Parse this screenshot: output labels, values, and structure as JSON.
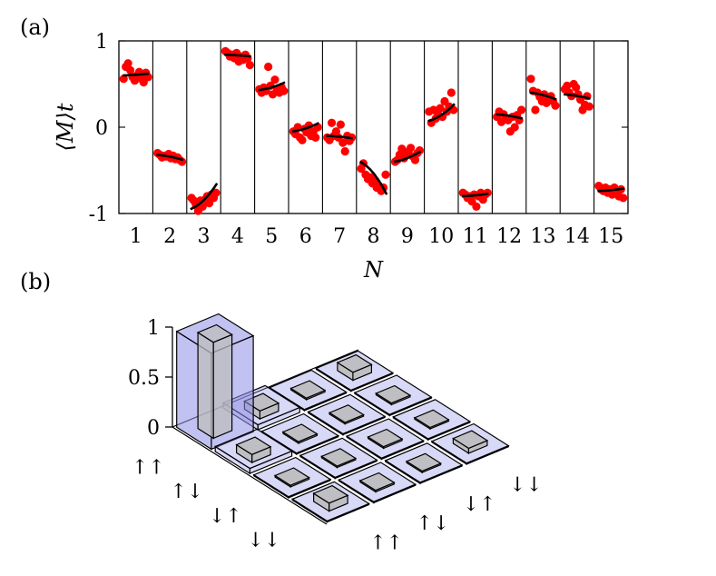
{
  "panel_a_label": "(a)",
  "panel_b_label": "(b)",
  "chart_data": [
    {
      "type": "scatter",
      "panel": "(a)",
      "xlabel": "N",
      "ylabel": "⟨M⟩t",
      "ylim": [
        -1,
        1
      ],
      "yticks": [
        "1",
        "0",
        "-1"
      ],
      "categories": [
        "1",
        "2",
        "3",
        "4",
        "5",
        "6",
        "7",
        "8",
        "9",
        "10",
        "11",
        "12",
        "13",
        "14",
        "15"
      ],
      "point_color": "#ff0000",
      "fit_color": "#000000",
      "fits": [
        [
          0.6,
          0.62
        ],
        [
          -0.32,
          -0.38
        ],
        [
          -0.95,
          -0.65
        ],
        [
          0.84,
          0.82
        ],
        [
          0.43,
          0.52
        ],
        [
          -0.05,
          0.05
        ],
        [
          -0.1,
          -0.13
        ],
        [
          -0.4,
          -0.78
        ],
        [
          -0.4,
          -0.28
        ],
        [
          0.07,
          0.27
        ],
        [
          -0.8,
          -0.77
        ],
        [
          0.15,
          0.1
        ],
        [
          0.4,
          0.32
        ],
        [
          0.38,
          0.33
        ],
        [
          -0.74,
          -0.71
        ]
      ],
      "points": [
        [
          0.56,
          0.7,
          0.74,
          0.66,
          0.58,
          0.54,
          0.6,
          0.64,
          0.56,
          0.52,
          0.63,
          0.58
        ],
        [
          -0.3,
          -0.32,
          -0.35,
          -0.33,
          -0.34,
          -0.31,
          -0.36,
          -0.33,
          -0.37,
          -0.35,
          -0.38,
          -0.4
        ],
        [
          -0.82,
          -0.85,
          -0.9,
          -0.97,
          -0.85,
          -0.92,
          -0.84,
          -0.8,
          -0.88,
          -0.78,
          -0.82,
          -0.76
        ],
        [
          0.88,
          0.86,
          0.82,
          0.84,
          0.8,
          0.86,
          0.76,
          0.82,
          0.78,
          0.84,
          0.8,
          0.72
        ],
        [
          0.44,
          0.4,
          0.46,
          0.42,
          0.7,
          0.48,
          0.38,
          0.55,
          0.44,
          0.4,
          0.46,
          0.42
        ],
        [
          -0.05,
          -0.08,
          0.0,
          -0.12,
          -0.15,
          -0.02,
          -0.06,
          0.02,
          -0.1,
          -0.05,
          -0.12,
          0.0
        ],
        [
          -0.12,
          -0.15,
          0.05,
          -0.1,
          -0.05,
          -0.12,
          0.03,
          -0.18,
          -0.28,
          -0.1,
          -0.16,
          -0.12
        ],
        [
          -0.48,
          -0.42,
          -0.55,
          -0.6,
          -0.58,
          -0.65,
          -0.62,
          -0.7,
          -0.68,
          -0.74,
          -0.7,
          -0.55
        ],
        [
          -0.4,
          -0.38,
          -0.32,
          -0.25,
          -0.36,
          -0.3,
          -0.28,
          -0.24,
          -0.34,
          -0.38,
          -0.3,
          -0.27
        ],
        [
          0.18,
          0.05,
          0.2,
          0.1,
          0.15,
          0.22,
          0.12,
          0.3,
          0.18,
          0.24,
          0.4,
          0.2
        ],
        [
          -0.76,
          -0.78,
          -0.82,
          -0.8,
          -0.86,
          -0.78,
          -0.92,
          -0.8,
          -0.76,
          -0.84,
          -0.78,
          -0.76
        ],
        [
          0.12,
          0.18,
          0.06,
          0.15,
          0.1,
          0.08,
          -0.05,
          0.12,
          0.0,
          0.14,
          0.08,
          0.2
        ],
        [
          0.56,
          0.42,
          0.2,
          0.4,
          0.35,
          0.3,
          0.38,
          0.28,
          0.32,
          0.36,
          0.3,
          0.25
        ],
        [
          0.44,
          0.48,
          0.4,
          0.36,
          0.5,
          0.46,
          0.38,
          0.32,
          0.2,
          0.26,
          0.36,
          0.24
        ],
        [
          -0.68,
          -0.72,
          -0.74,
          -0.7,
          -0.76,
          -0.72,
          -0.78,
          -0.7,
          -0.74,
          -0.8,
          -0.72,
          -0.82
        ]
      ]
    },
    {
      "type": "bar3d",
      "panel": "(b)",
      "zlim": [
        0,
        1
      ],
      "zticks": [
        "1",
        "0.5",
        "0"
      ],
      "row_labels": [
        "↑↑",
        "↑↓",
        "↓↑",
        "↓↓"
      ],
      "col_labels": [
        "↑↑",
        "↑↓",
        "↓↑",
        "↓↓"
      ],
      "measured_color": "#8f8fe8",
      "ideal_color": "#bdbdbd",
      "ideal": [
        [
          1.0,
          0.0,
          0.0,
          0.0
        ],
        [
          0.0,
          0.0,
          0.0,
          0.0
        ],
        [
          0.0,
          0.0,
          0.0,
          0.0
        ],
        [
          0.0,
          0.0,
          0.0,
          0.0
        ]
      ],
      "measured": [
        [
          0.96,
          0.05,
          0.0,
          0.0
        ],
        [
          0.05,
          0.0,
          0.0,
          0.0
        ],
        [
          0.0,
          0.0,
          0.0,
          0.0
        ],
        [
          0.0,
          0.0,
          0.0,
          0.0
        ]
      ],
      "ideal_small": [
        [
          1.0,
          0.08,
          0.0,
          0.08
        ],
        [
          0.08,
          0.0,
          0.0,
          0.0
        ],
        [
          0.0,
          0.0,
          0.0,
          0.0
        ],
        [
          0.08,
          0.0,
          0.0,
          0.05
        ]
      ]
    }
  ]
}
